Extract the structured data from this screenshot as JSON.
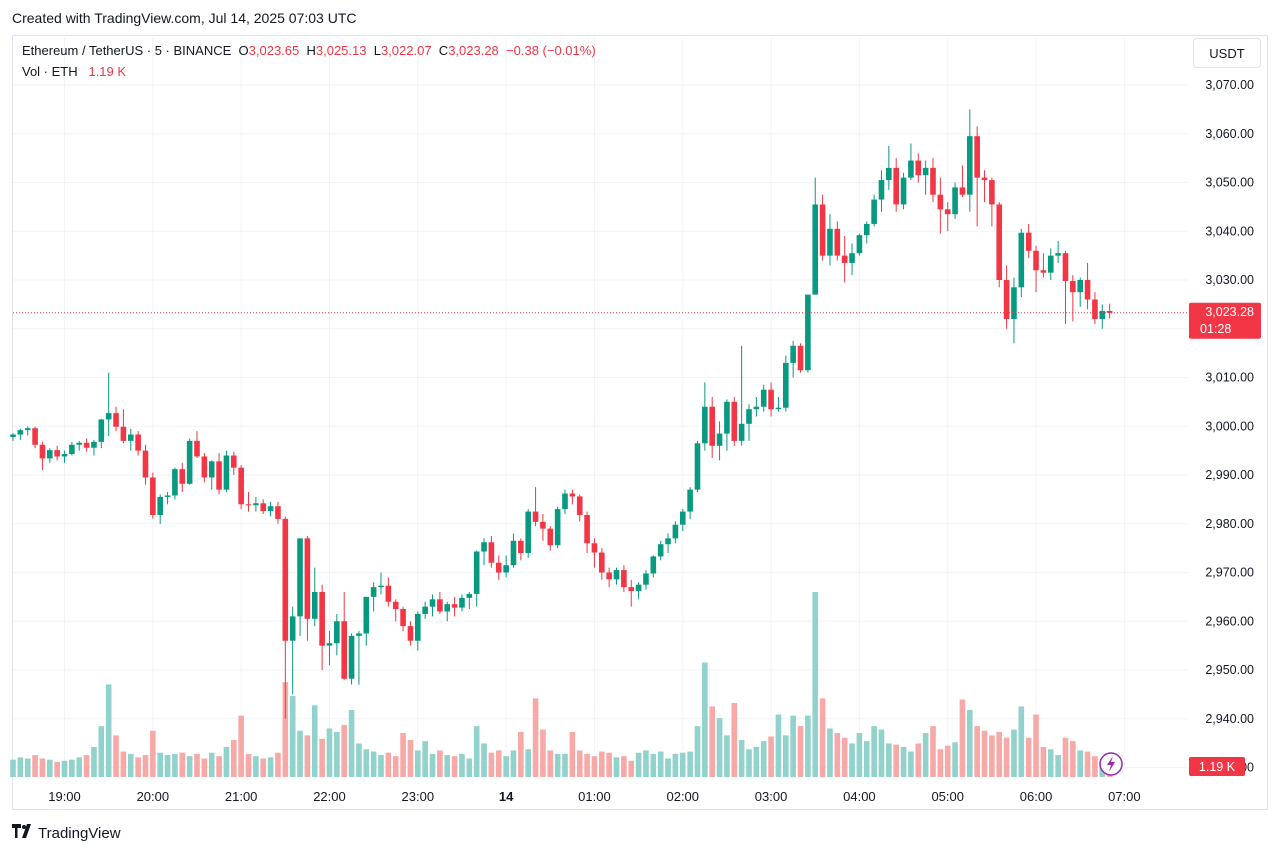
{
  "header": {
    "created_text": "Created with TradingView.com, Jul 14, 2025 07:03 UTC"
  },
  "legend": {
    "symbol": "Ethereum / TetherUS · 5 · BINANCE",
    "o_label": "O",
    "o_value": "3,023.65",
    "h_label": "H",
    "h_value": "3,025.13",
    "l_label": "L",
    "l_value": "3,022.07",
    "c_label": "C",
    "c_value": "3,023.28",
    "change": "−0.38 (−0.01%)",
    "vol_label": "Vol · ETH",
    "vol_value": "1.19 K"
  },
  "currency_button": "USDT",
  "price_tag": {
    "price": "3,023.28",
    "countdown": "01:28"
  },
  "volume_tag": "1.19 K",
  "footer": {
    "brand": "TradingView",
    "logo_icon": "tradingview-logo-icon"
  },
  "colors": {
    "up": "#089981",
    "down": "#f23645",
    "vol_up": "#92d2cc",
    "vol_down": "#f7a9a7",
    "grid": "#f0f3fa"
  },
  "chart_data": {
    "type": "candlestick",
    "interval_minutes": 5,
    "y_ticks": [
      "3,070.00",
      "3,060.00",
      "3,050.00",
      "3,040.00",
      "3,030.00",
      "3,020.00",
      "3,010.00",
      "3,000.00",
      "2,990.00",
      "2,980.00",
      "2,970.00",
      "2,960.00",
      "2,950.00",
      "2,940.00",
      "2,930.00"
    ],
    "y_tick_values": [
      3070,
      3060,
      3050,
      3040,
      3030,
      3020,
      3010,
      3000,
      2990,
      2980,
      2970,
      2960,
      2950,
      2940,
      2930
    ],
    "x_ticks": [
      "19:00",
      "20:00",
      "21:00",
      "22:00",
      "23:00",
      "14",
      "01:00",
      "02:00",
      "03:00",
      "04:00",
      "05:00",
      "06:00",
      "07:00"
    ],
    "last_price": 3023.28,
    "last_volume": 1.19,
    "volume_max": 16.0,
    "candles": [
      [
        2997.8,
        2998.6,
        2997.0,
        2998.3,
        1.5
      ],
      [
        2998.3,
        2999.5,
        2997.2,
        2999.2,
        1.7
      ],
      [
        2999.2,
        3000.0,
        2998.1,
        2999.6,
        1.6
      ],
      [
        2999.6,
        2999.9,
        2995.5,
        2996.2,
        1.9
      ],
      [
        2996.2,
        2996.8,
        2991.0,
        2993.4,
        1.6
      ],
      [
        2993.4,
        2995.5,
        2992.5,
        2995.1,
        1.5
      ],
      [
        2995.1,
        2996.0,
        2993.0,
        2993.8,
        1.3
      ],
      [
        2993.8,
        2995.0,
        2992.5,
        2994.3,
        1.4
      ],
      [
        2994.3,
        2996.8,
        2994.0,
        2996.2,
        1.5
      ],
      [
        2996.2,
        2997.0,
        2995.0,
        2996.6,
        1.7
      ],
      [
        2996.6,
        2997.5,
        2994.8,
        2995.6,
        1.9
      ],
      [
        2995.6,
        2997.2,
        2994.0,
        2996.8,
        2.6
      ],
      [
        2996.8,
        3001.5,
        2995.5,
        3001.4,
        4.4
      ],
      [
        3001.4,
        3011.0,
        2998.0,
        3002.7,
        8.0
      ],
      [
        3002.7,
        3004.0,
        2999.0,
        2999.9,
        3.6
      ],
      [
        2999.9,
        3003.5,
        2996.5,
        2997.0,
        2.2
      ],
      [
        2997.0,
        2999.5,
        2995.0,
        2998.3,
        2.0
      ],
      [
        2998.3,
        2999.0,
        2994.0,
        2995.0,
        1.7
      ],
      [
        2995.0,
        2996.2,
        2988.0,
        2989.5,
        1.9
      ],
      [
        2989.5,
        2990.5,
        2981.0,
        2981.8,
        4.0
      ],
      [
        2981.8,
        2986.0,
        2980.0,
        2985.5,
        2.1
      ],
      [
        2985.5,
        2986.5,
        2984.0,
        2985.8,
        1.9
      ],
      [
        2985.8,
        2991.5,
        2985.0,
        2991.2,
        2.0
      ],
      [
        2991.2,
        2992.5,
        2986.5,
        2988.2,
        2.1
      ],
      [
        2988.2,
        2997.5,
        2988.0,
        2997.0,
        1.8
      ],
      [
        2997.0,
        2999.0,
        2993.5,
        2993.8,
        2.0
      ],
      [
        2993.8,
        2994.5,
        2988.5,
        2989.5,
        1.6
      ],
      [
        2989.5,
        2993.0,
        2987.0,
        2992.8,
        2.1
      ],
      [
        2992.8,
        2994.5,
        2986.0,
        2987.0,
        1.8
      ],
      [
        2987.0,
        2995.0,
        2986.5,
        2994.0,
        2.6
      ],
      [
        2994.0,
        2994.8,
        2990.0,
        2991.5,
        3.2
      ],
      [
        2991.5,
        2992.0,
        2983.0,
        2984.0,
        5.3
      ],
      [
        2984.0,
        2986.5,
        2982.5,
        2983.8,
        2.0
      ],
      [
        2983.8,
        2985.5,
        2982.5,
        2984.2,
        1.8
      ],
      [
        2984.2,
        2985.0,
        2982.0,
        2982.6,
        1.6
      ],
      [
        2982.6,
        2984.5,
        2981.5,
        2983.6,
        1.7
      ],
      [
        2983.6,
        2984.5,
        2980.0,
        2981.0,
        2.1
      ],
      [
        2981.0,
        2981.5,
        2940.0,
        2956.0,
        8.2
      ],
      [
        2956.0,
        2963.0,
        2945.0,
        2961.0,
        7.0
      ],
      [
        2961.0,
        2977.0,
        2957.0,
        2977.0,
        4.0
      ],
      [
        2977.0,
        2977.5,
        2956.0,
        2960.5,
        3.6
      ],
      [
        2960.5,
        2971.0,
        2959.0,
        2966.0,
        6.2
      ],
      [
        2966.0,
        2967.5,
        2950.0,
        2955.0,
        3.3
      ],
      [
        2955.0,
        2958.0,
        2951.0,
        2955.5,
        4.2
      ],
      [
        2955.5,
        2961.5,
        2953.0,
        2960.0,
        3.9
      ],
      [
        2960.0,
        2966.0,
        2948.0,
        2948.2,
        4.5
      ],
      [
        2948.2,
        2957.5,
        2947.0,
        2957.0,
        5.8
      ],
      [
        2957.0,
        2958.0,
        2947.0,
        2957.5,
        2.9
      ],
      [
        2957.5,
        2965.0,
        2955.0,
        2965.0,
        2.4
      ],
      [
        2965.0,
        2968.0,
        2962.0,
        2967.0,
        2.2
      ],
      [
        2967.0,
        2970.0,
        2965.5,
        2967.3,
        1.9
      ],
      [
        2967.3,
        2969.0,
        2963.0,
        2964.0,
        2.1
      ],
      [
        2964.0,
        2964.5,
        2960.0,
        2962.5,
        1.8
      ],
      [
        2962.5,
        2963.0,
        2958.0,
        2959.0,
        3.8
      ],
      [
        2959.0,
        2960.0,
        2955.0,
        2956.0,
        3.2
      ],
      [
        2956.0,
        2962.0,
        2954.0,
        2961.5,
        2.3
      ],
      [
        2961.5,
        2964.0,
        2960.5,
        2963.0,
        3.1
      ],
      [
        2963.0,
        2965.5,
        2961.0,
        2964.5,
        2.0
      ],
      [
        2964.5,
        2966.0,
        2961.5,
        2962.0,
        2.3
      ],
      [
        2962.0,
        2964.0,
        2960.0,
        2963.5,
        1.9
      ],
      [
        2963.5,
        2965.0,
        2961.0,
        2962.8,
        1.8
      ],
      [
        2962.8,
        2965.5,
        2962.0,
        2964.8,
        2.0
      ],
      [
        2964.8,
        2966.0,
        2962.5,
        2965.6,
        1.6
      ],
      [
        2965.6,
        2974.5,
        2963.0,
        2974.3,
        4.4
      ],
      [
        2974.3,
        2977.0,
        2971.5,
        2976.2,
        2.9
      ],
      [
        2976.2,
        2977.5,
        2971.0,
        2972.0,
        2.1
      ],
      [
        2972.0,
        2973.5,
        2968.5,
        2970.0,
        2.3
      ],
      [
        2970.0,
        2973.5,
        2969.0,
        2971.5,
        1.8
      ],
      [
        2971.5,
        2978.0,
        2971.0,
        2976.5,
        2.3
      ],
      [
        2976.5,
        2977.0,
        2972.5,
        2974.0,
        3.9
      ],
      [
        2974.0,
        2983.0,
        2973.0,
        2982.5,
        2.4
      ],
      [
        2982.5,
        2987.5,
        2979.5,
        2980.4,
        6.8
      ],
      [
        2980.4,
        2982.0,
        2976.5,
        2979.0,
        4.1
      ],
      [
        2979.0,
        2979.5,
        2974.5,
        2975.6,
        2.3
      ],
      [
        2975.6,
        2983.5,
        2975.0,
        2983.0,
        2.0
      ],
      [
        2983.0,
        2987.0,
        2982.0,
        2986.2,
        2.0
      ],
      [
        2986.2,
        2987.0,
        2984.0,
        2985.6,
        3.9
      ],
      [
        2985.6,
        2986.0,
        2980.5,
        2981.8,
        2.3
      ],
      [
        2981.8,
        2982.5,
        2974.0,
        2976.0,
        2.0
      ],
      [
        2976.0,
        2977.0,
        2971.0,
        2974.1,
        1.8
      ],
      [
        2974.1,
        2975.0,
        2968.5,
        2970.0,
        2.2
      ],
      [
        2970.0,
        2971.0,
        2967.0,
        2968.6,
        2.1
      ],
      [
        2968.6,
        2971.0,
        2967.5,
        2970.5,
        1.7
      ],
      [
        2970.5,
        2971.5,
        2966.0,
        2967.0,
        1.8
      ],
      [
        2967.0,
        2968.5,
        2963.0,
        2966.2,
        1.4
      ],
      [
        2966.2,
        2968.0,
        2964.5,
        2967.5,
        2.1
      ],
      [
        2967.5,
        2970.5,
        2966.5,
        2969.8,
        2.3
      ],
      [
        2969.8,
        2973.5,
        2969.0,
        2973.3,
        2.0
      ],
      [
        2973.3,
        2976.5,
        2972.5,
        2975.8,
        2.2
      ],
      [
        2975.8,
        2978.0,
        2974.0,
        2977.0,
        1.6
      ],
      [
        2977.0,
        2980.5,
        2976.0,
        2979.8,
        2.0
      ],
      [
        2979.8,
        2983.0,
        2978.5,
        2982.5,
        2.1
      ],
      [
        2982.5,
        2987.5,
        2981.0,
        2987.0,
        2.2
      ],
      [
        2987.0,
        2997.0,
        2986.5,
        2996.5,
        4.4
      ],
      [
        2996.5,
        3009.0,
        2995.0,
        3004.0,
        9.9
      ],
      [
        3004.0,
        3006.0,
        2993.5,
        2996.0,
        6.1
      ],
      [
        2996.0,
        3001.0,
        2993.0,
        2998.5,
        5.1
      ],
      [
        2998.5,
        3005.5,
        2995.0,
        3005.0,
        3.6
      ],
      [
        3005.0,
        3006.0,
        2996.0,
        2997.0,
        6.4
      ],
      [
        2997.0,
        3016.5,
        2996.0,
        3000.5,
        3.2
      ],
      [
        3000.5,
        3004.5,
        2997.0,
        3003.5,
        2.4
      ],
      [
        3003.5,
        3006.0,
        3002.0,
        3004.0,
        2.6
      ],
      [
        3004.0,
        3008.5,
        3003.0,
        3007.5,
        3.1
      ],
      [
        3007.5,
        3009.0,
        3002.0,
        3003.5,
        3.5
      ],
      [
        3003.5,
        3006.0,
        3003.0,
        3003.8,
        5.4
      ],
      [
        3003.8,
        3014.5,
        3003.0,
        3013.0,
        3.6
      ],
      [
        3013.0,
        3017.5,
        3010.0,
        3016.5,
        5.3
      ],
      [
        3016.5,
        3017.0,
        3011.0,
        3011.5,
        4.4
      ],
      [
        3011.5,
        3027.0,
        3011.0,
        3027.0,
        5.3
      ],
      [
        3027.0,
        3051.0,
        3027.0,
        3045.5,
        16.0
      ],
      [
        3045.5,
        3047.5,
        3034.0,
        3035.0,
        6.8
      ],
      [
        3035.0,
        3043.5,
        3033.0,
        3040.5,
        4.2
      ],
      [
        3040.5,
        3042.0,
        3034.0,
        3035.0,
        3.8
      ],
      [
        3035.0,
        3039.0,
        3029.5,
        3033.5,
        3.4
      ],
      [
        3033.5,
        3037.5,
        3031.0,
        3035.5,
        2.9
      ],
      [
        3035.5,
        3039.5,
        3035.0,
        3039.2,
        3.8
      ],
      [
        3039.2,
        3042.0,
        3037.5,
        3041.5,
        3.1
      ],
      [
        3041.5,
        3047.5,
        3041.0,
        3046.5,
        4.4
      ],
      [
        3046.5,
        3052.5,
        3044.0,
        3050.5,
        4.1
      ],
      [
        3050.5,
        3057.5,
        3048.5,
        3053.0,
        2.9
      ],
      [
        3053.0,
        3055.0,
        3044.0,
        3045.5,
        2.8
      ],
      [
        3045.5,
        3052.0,
        3044.5,
        3051.0,
        2.6
      ],
      [
        3051.0,
        3058.0,
        3050.5,
        3054.5,
        2.2
      ],
      [
        3054.5,
        3056.0,
        3050.0,
        3051.5,
        2.9
      ],
      [
        3051.5,
        3054.5,
        3047.5,
        3053.0,
        3.8
      ],
      [
        3053.0,
        3055.0,
        3046.0,
        3047.5,
        4.4
      ],
      [
        3047.5,
        3051.0,
        3039.5,
        3044.5,
        2.4
      ],
      [
        3044.5,
        3046.0,
        3040.0,
        3043.5,
        2.7
      ],
      [
        3043.5,
        3050.0,
        3042.5,
        3049.0,
        3.0
      ],
      [
        3049.0,
        3053.5,
        3047.0,
        3047.5,
        6.7
      ],
      [
        3047.5,
        3065.0,
        3044.0,
        3059.5,
        5.8
      ],
      [
        3059.5,
        3061.5,
        3041.0,
        3051.0,
        4.4
      ],
      [
        3051.0,
        3052.5,
        3046.0,
        3050.5,
        4.0
      ],
      [
        3050.5,
        3051.0,
        3041.0,
        3045.5,
        3.6
      ],
      [
        3045.5,
        3046.0,
        3028.5,
        3030.0,
        3.9
      ],
      [
        3030.0,
        3033.0,
        3020.0,
        3022.0,
        3.4
      ],
      [
        3022.0,
        3030.5,
        3017.0,
        3028.5,
        4.1
      ],
      [
        3028.5,
        3040.5,
        3026.5,
        3039.7,
        6.1
      ],
      [
        3039.7,
        3041.5,
        3034.5,
        3036.0,
        3.4
      ],
      [
        3036.0,
        3037.0,
        3027.5,
        3032.0,
        5.4
      ],
      [
        3032.0,
        3035.5,
        3030.5,
        3031.5,
        2.6
      ],
      [
        3031.5,
        3036.5,
        3030.0,
        3035.0,
        2.4
      ],
      [
        3035.0,
        3038.0,
        3033.5,
        3035.5,
        1.9
      ],
      [
        3035.5,
        3036.0,
        3021.0,
        3029.8,
        3.4
      ],
      [
        3029.8,
        3031.0,
        3021.5,
        3027.5,
        3.1
      ],
      [
        3027.5,
        3030.5,
        3024.5,
        3030.0,
        2.3
      ],
      [
        3030.0,
        3033.5,
        3024.0,
        3026.0,
        2.2
      ],
      [
        3026.0,
        3027.5,
        3021.0,
        3022.0,
        1.8
      ],
      [
        3022.0,
        3025.0,
        3020.0,
        3023.65,
        1.2
      ],
      [
        3023.65,
        3025.13,
        3022.07,
        3023.28,
        1.19
      ]
    ]
  }
}
